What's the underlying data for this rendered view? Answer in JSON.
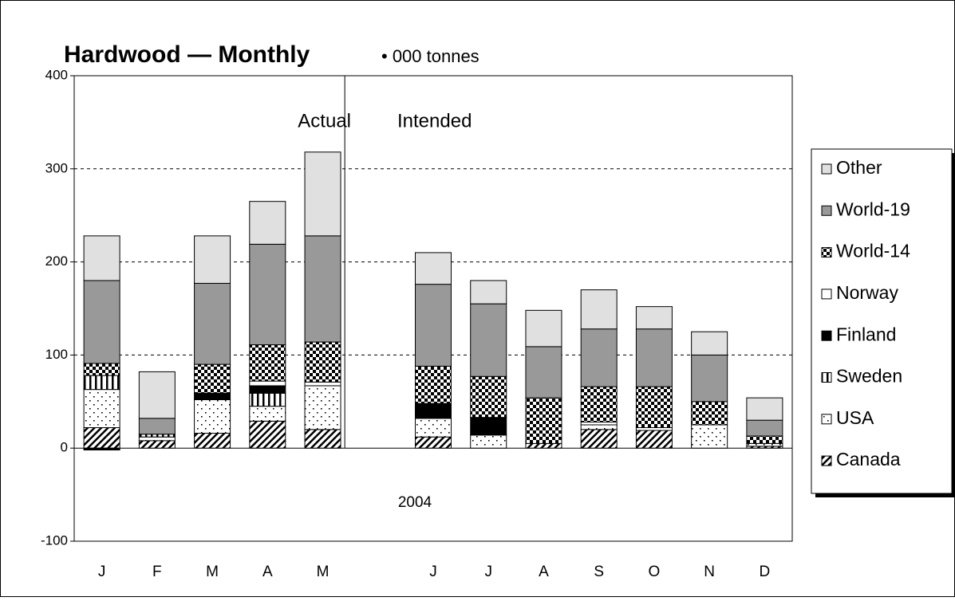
{
  "chart_data": {
    "type": "stacked_bar",
    "title": "Hardwood — Monthly",
    "subtitle": "• 000 tonnes",
    "annotations": [
      "Actual",
      "Intended",
      "2004"
    ],
    "categories": [
      "J",
      "F",
      "M",
      "A",
      "M",
      null,
      "J",
      "J",
      "A",
      "S",
      "O",
      "N",
      "D"
    ],
    "series": [
      {
        "name": "Canada",
        "color": "#ffffff",
        "pattern": "diagonal",
        "values": [
          22,
          8,
          16,
          29,
          20,
          null,
          12,
          0,
          5,
          20,
          19,
          0,
          2
        ]
      },
      {
        "name": "USA",
        "color": "#ffffff",
        "pattern": "dots",
        "values": [
          41,
          4,
          36,
          16,
          47,
          null,
          20,
          14,
          0,
          5,
          0,
          25,
          3
        ]
      },
      {
        "name": "Sweden",
        "color": "#ffffff",
        "pattern": "vertical",
        "values": [
          15,
          3,
          0,
          14,
          0,
          null,
          0,
          0,
          0,
          0,
          0,
          0,
          0
        ]
      },
      {
        "name": "Finland",
        "color": "#000000",
        "pattern": "solid",
        "values": [
          -2,
          0,
          7,
          8,
          0,
          null,
          16,
          19,
          0,
          0,
          0,
          0,
          0
        ]
      },
      {
        "name": "Norway",
        "color": "#ffffff",
        "pattern": "solid",
        "values": [
          0,
          0,
          0,
          5,
          4,
          null,
          0,
          0,
          0,
          3,
          3,
          0,
          0
        ]
      },
      {
        "name": "World-14",
        "color": "#ffffff",
        "pattern": "checker",
        "values": [
          13,
          0,
          31,
          39,
          43,
          null,
          40,
          44,
          49,
          38,
          44,
          25,
          8
        ]
      },
      {
        "name": "World-19",
        "color": "#999999",
        "pattern": "solid",
        "values": [
          89,
          17,
          87,
          108,
          114,
          null,
          88,
          78,
          55,
          62,
          62,
          50,
          17
        ]
      },
      {
        "name": "Other",
        "color": "#e0e0e0",
        "pattern": "solid",
        "values": [
          48,
          50,
          51,
          46,
          90,
          null,
          34,
          25,
          39,
          42,
          24,
          25,
          24
        ]
      }
    ],
    "ylim": [
      -100,
      400
    ],
    "yticks": [
      -100,
      0,
      100,
      200,
      300,
      400
    ],
    "grid": true,
    "legend": "right"
  }
}
